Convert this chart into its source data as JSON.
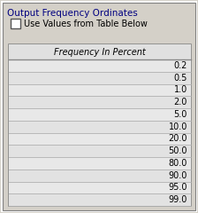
{
  "title": "Output Frequency Ordinates",
  "checkbox_label": "Use Values from Table Below",
  "table_header": "Frequency In Percent",
  "table_values": [
    "0.2",
    "0.5",
    "1.0",
    "2.0",
    "5.0",
    "10.0",
    "20.0",
    "50.0",
    "80.0",
    "90.0",
    "95.0",
    "99.0"
  ],
  "bg_color": "#e8e8e8",
  "outer_bg": "#d4d0c8",
  "title_color": "#000080",
  "table_bg_light": "#e8e8e8",
  "table_bg_dark": "#d8d8d8",
  "table_header_bg": "#e0e0e0",
  "border_color_outer": "#ffffff",
  "border_color_inner": "#a0a0a0",
  "row_line_color": "#b0b0b0",
  "text_color": "#000000",
  "figsize": [
    2.24,
    2.4
  ],
  "dpi": 100
}
